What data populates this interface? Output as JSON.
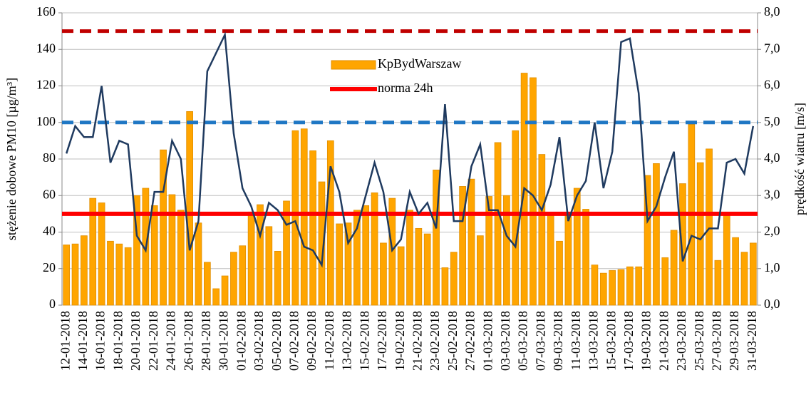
{
  "chart_data": {
    "type": "bar_line",
    "y_label": "stężenie dobowe PM10 [µg/m³]",
    "y2_label": "prędkość wiatru [m/s]",
    "categories": [
      "12-01-2018",
      null,
      "14-01-2018",
      null,
      "16-01-2018",
      null,
      "18-01-2018",
      null,
      "20-01-2018",
      null,
      "22-01-2018",
      null,
      "24-01-2018",
      null,
      "26-01-2018",
      null,
      "28-01-2018",
      null,
      "30-01-2018",
      null,
      "01-02-2018",
      null,
      "03-02-2018",
      null,
      "05-02-2018",
      null,
      "07-02-2018",
      null,
      "09-02-2018",
      null,
      "11-02-2018",
      null,
      "13-02-2018",
      null,
      "15-02-2018",
      null,
      "17-02-2018",
      null,
      "19-02-2018",
      null,
      "21-02-2018",
      null,
      "23-02-2018",
      null,
      "25-02-2018",
      null,
      "27-02-2018",
      null,
      "01-03-2018",
      null,
      "03-03-2018",
      null,
      "05-03-2018",
      null,
      "07-03-2018",
      null,
      "09-03-2018",
      null,
      "11-03-2018",
      null,
      "13-03-2018",
      null,
      "15-03-2018",
      null,
      "17-03-2018",
      null,
      "19-03-2018",
      null,
      "21-03-2018",
      null,
      "23-03-2018",
      null,
      "25-03-2018",
      null,
      "27-03-2018",
      null,
      "29-03-2018",
      null,
      "31-03-2018"
    ],
    "series": [
      {
        "name": "KpBydWarszaw",
        "color": "#ffa500",
        "kind": "bar",
        "values": [
          33,
          33.5,
          38,
          58.5,
          56,
          35,
          33.5,
          31.5,
          60,
          64,
          54.5,
          85,
          60.5,
          52,
          106,
          45,
          23.5,
          9,
          16,
          29,
          32.5,
          51,
          55,
          43,
          29.5,
          57,
          95.5,
          96.5,
          84.5,
          67.5,
          90,
          44.5,
          45,
          52,
          54.5,
          61.5,
          34,
          58.5,
          32,
          52,
          42,
          39,
          74,
          20.5,
          29,
          65,
          69,
          38,
          59.5,
          89,
          60,
          95.5,
          127,
          124.5,
          82.5,
          49.5,
          35,
          49.5,
          64,
          52.5,
          22,
          17.5,
          19,
          19.5,
          21,
          21,
          71,
          77.5,
          26,
          41,
          66.5,
          99,
          78,
          85.5,
          24.5,
          49,
          37,
          29,
          34
        ]
      },
      {
        "color": "#1f3a5f",
        "kind": "line",
        "axis": "y2",
        "values": [
          4.15,
          4.9,
          4.6,
          4.6,
          6.0,
          3.9,
          4.5,
          4.4,
          1.9,
          1.5,
          3.1,
          3.1,
          4.5,
          4.0,
          1.5,
          2.3,
          6.4,
          6.9,
          7.4,
          4.7,
          3.2,
          2.7,
          1.9,
          2.8,
          2.6,
          2.2,
          2.3,
          1.6,
          1.5,
          1.1,
          3.8,
          3.1,
          1.7,
          2.1,
          3.0,
          3.9,
          3.1,
          1.5,
          1.8,
          3.1,
          2.5,
          2.8,
          2.1,
          5.5,
          2.3,
          2.3,
          3.8,
          4.4,
          2.6,
          2.6,
          1.9,
          1.6,
          3.2,
          3.0,
          2.6,
          3.3,
          4.6,
          2.3,
          3.0,
          3.4,
          5.0,
          3.2,
          4.2,
          7.2,
          7.3,
          5.8,
          2.3,
          2.7,
          3.5,
          4.2,
          1.2,
          1.9,
          1.8,
          2.1,
          2.1,
          3.9,
          4.0,
          3.6,
          4.9
        ]
      }
    ],
    "reference_lines": [
      {
        "name": "norma 24h",
        "value": 50,
        "color": "#ff0000",
        "dashed": false
      },
      {
        "value": 150,
        "color": "#c00000",
        "dashed": true
      },
      {
        "value": 100,
        "color": "#1f77c4",
        "dashed": true
      }
    ],
    "ylim": [
      0,
      160
    ],
    "yticks": [
      0,
      20,
      40,
      60,
      80,
      100,
      120,
      140,
      160
    ],
    "y2lim": [
      0,
      8
    ],
    "y2ticks": [
      {
        "value": 0,
        "label": "0,0"
      },
      {
        "value": 1,
        "label": "1,0"
      },
      {
        "value": 2,
        "label": "2,0"
      },
      {
        "value": 3,
        "label": "3,0"
      },
      {
        "value": 4,
        "label": "4,0"
      },
      {
        "value": 5,
        "label": "5,0"
      },
      {
        "value": 6,
        "label": "6,0"
      },
      {
        "value": 7,
        "label": "7,0"
      },
      {
        "value": 8,
        "label": "8,0"
      }
    ],
    "grid": true
  }
}
